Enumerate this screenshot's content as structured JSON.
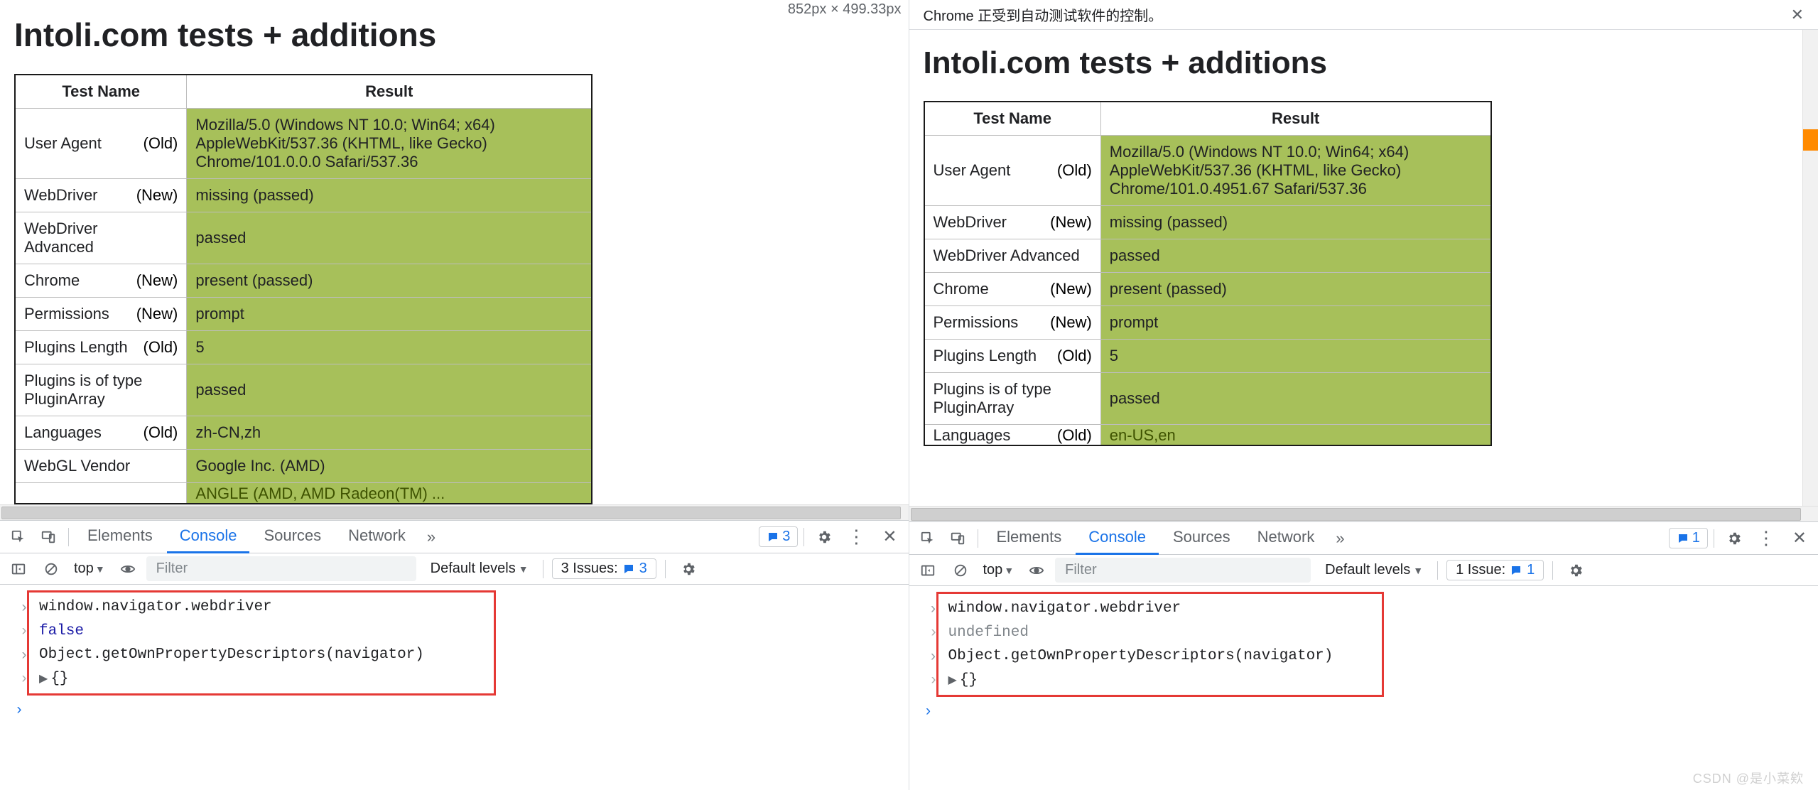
{
  "left": {
    "dims_label": "852px × 499.33px",
    "page_title": "Intoli.com tests + additions",
    "headers": {
      "name": "Test Name",
      "result": "Result"
    },
    "rows": [
      {
        "name": "User Agent",
        "age": "(Old)",
        "result": "Mozilla/5.0 (Windows NT 10.0; Win64; x64) AppleWebKit/537.36 (KHTML, like Gecko) Chrome/101.0.0.0 Safari/537.36"
      },
      {
        "name": "WebDriver",
        "age": "(New)",
        "result": "missing (passed)"
      },
      {
        "name": "WebDriver Advanced",
        "age": "",
        "result": "passed"
      },
      {
        "name": "Chrome",
        "age": "(New)",
        "result": "present (passed)"
      },
      {
        "name": "Permissions",
        "age": "(New)",
        "result": "prompt"
      },
      {
        "name": "Plugins Length",
        "age": "(Old)",
        "result": "5"
      },
      {
        "name": "Plugins is of type PluginArray",
        "age": "",
        "result": "passed"
      },
      {
        "name": "Languages",
        "age": "(Old)",
        "result": "zh-CN,zh"
      },
      {
        "name": "WebGL Vendor",
        "age": "",
        "result": "Google Inc. (AMD)"
      }
    ],
    "cut_row": {
      "result": "ANGLE (AMD, AMD Radeon(TM) ..."
    },
    "devtools": {
      "tabs": {
        "elements": "Elements",
        "console": "Console",
        "sources": "Sources",
        "network": "Network",
        "more": "»"
      },
      "msg_pill": "3",
      "ctx_label": "top",
      "filter_placeholder": "Filter",
      "levels_label": "Default levels",
      "issues_label": "3 Issues:",
      "issues_count": "3",
      "console_lines": [
        {
          "dir": "in",
          "kind": "code",
          "text": "window.navigator.webdriver"
        },
        {
          "dir": "out",
          "kind": "val-false",
          "text": "false"
        },
        {
          "dir": "in",
          "kind": "code",
          "text": "Object.getOwnPropertyDescriptors(navigator)"
        },
        {
          "dir": "out",
          "kind": "obj",
          "text": "{}"
        }
      ]
    }
  },
  "right": {
    "infobar_text": "Chrome 正受到自动测试软件的控制。",
    "page_title": "Intoli.com tests + additions",
    "headers": {
      "name": "Test Name",
      "result": "Result"
    },
    "rows": [
      {
        "name": "User Agent",
        "age": "(Old)",
        "result": "Mozilla/5.0 (Windows NT 10.0; Win64; x64) AppleWebKit/537.36 (KHTML, like Gecko) Chrome/101.0.4951.67 Safari/537.36"
      },
      {
        "name": "WebDriver",
        "age": "(New)",
        "result": "missing (passed)"
      },
      {
        "name": "WebDriver Advanced",
        "age": "",
        "result": "passed"
      },
      {
        "name": "Chrome",
        "age": "(New)",
        "result": "present (passed)"
      },
      {
        "name": "Permissions",
        "age": "(New)",
        "result": "prompt"
      },
      {
        "name": "Plugins Length",
        "age": "(Old)",
        "result": "5"
      },
      {
        "name": "Plugins is of type PluginArray",
        "age": "",
        "result": "passed"
      }
    ],
    "cut_row": {
      "name": "Languages",
      "age": "(Old)",
      "result": "en-US,en"
    },
    "devtools": {
      "tabs": {
        "elements": "Elements",
        "console": "Console",
        "sources": "Sources",
        "network": "Network",
        "more": "»"
      },
      "msg_pill": "1",
      "ctx_label": "top",
      "filter_placeholder": "Filter",
      "levels_label": "Default levels",
      "issues_label": "1 Issue:",
      "issues_count": "1",
      "console_lines": [
        {
          "dir": "in",
          "kind": "code",
          "text": "window.navigator.webdriver"
        },
        {
          "dir": "out",
          "kind": "val-undef",
          "text": "undefined"
        },
        {
          "dir": "in",
          "kind": "code",
          "text": "Object.getOwnPropertyDescriptors(navigator)"
        },
        {
          "dir": "out",
          "kind": "obj",
          "text": "{}"
        }
      ]
    }
  },
  "watermark": "CSDN @是小菜欸",
  "colors": {
    "result_bg": "#a7c05a",
    "devtools_accent": "#1a73e8",
    "console_highlight_border": "#e53935"
  }
}
